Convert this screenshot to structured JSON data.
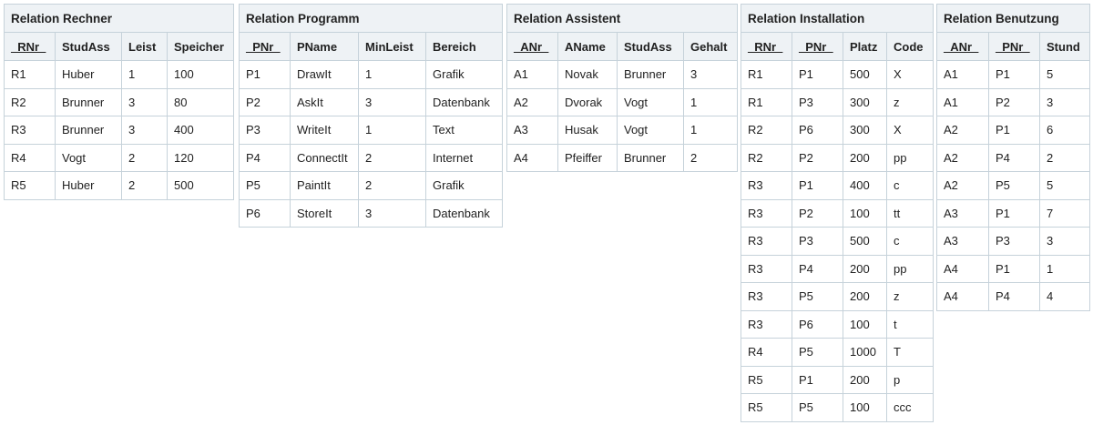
{
  "tables": [
    {
      "title": "Relation Rechner",
      "columns": [
        "_RNr_",
        "StudAss",
        "Leist",
        "Speicher"
      ],
      "rows": [
        [
          "R1",
          "Huber",
          "1",
          "100"
        ],
        [
          "R2",
          "Brunner",
          "3",
          "80"
        ],
        [
          "R3",
          "Brunner",
          "3",
          "400"
        ],
        [
          "R4",
          "Vogt",
          "2",
          "120"
        ],
        [
          "R5",
          "Huber",
          "2",
          "500"
        ]
      ]
    },
    {
      "title": "Relation Programm",
      "columns": [
        "_PNr_",
        "PName",
        "MinLeist",
        "Bereich"
      ],
      "rows": [
        [
          "P1",
          "DrawIt",
          "1",
          "Grafik"
        ],
        [
          "P2",
          "AskIt",
          "3",
          "Datenbank"
        ],
        [
          "P3",
          "WriteIt",
          "1",
          "Text"
        ],
        [
          "P4",
          "ConnectIt",
          "2",
          "Internet"
        ],
        [
          "P5",
          "PaintIt",
          "2",
          "Grafik"
        ],
        [
          "P6",
          "StoreIt",
          "3",
          "Datenbank"
        ]
      ]
    },
    {
      "title": "Relation Assistent",
      "columns": [
        "_ANr_",
        "AName",
        "StudAss",
        "Gehalt"
      ],
      "rows": [
        [
          "A1",
          "Novak",
          "Brunner",
          "3"
        ],
        [
          "A2",
          "Dvorak",
          "Vogt",
          "1"
        ],
        [
          "A3",
          "Husak",
          "Vogt",
          "1"
        ],
        [
          "A4",
          "Pfeiffer",
          "Brunner",
          "2"
        ]
      ]
    },
    {
      "title": "Relation Installation",
      "columns": [
        "_RNr_",
        "_PNr_",
        "Platz",
        "Code"
      ],
      "rows": [
        [
          "R1",
          "P1",
          "500",
          "X"
        ],
        [
          "R1",
          "P3",
          "300",
          "z"
        ],
        [
          "R2",
          "P6",
          "300",
          "X"
        ],
        [
          "R2",
          "P2",
          "200",
          "pp"
        ],
        [
          "R3",
          "P1",
          "400",
          "c"
        ],
        [
          "R3",
          "P2",
          "100",
          "tt"
        ],
        [
          "R3",
          "P3",
          "500",
          "c"
        ],
        [
          "R3",
          "P4",
          "200",
          "pp"
        ],
        [
          "R3",
          "P5",
          "200",
          "z"
        ],
        [
          "R3",
          "P6",
          "100",
          "t"
        ],
        [
          "R4",
          "P5",
          "1000",
          "T"
        ],
        [
          "R5",
          "P1",
          "200",
          "p"
        ],
        [
          "R5",
          "P5",
          "100",
          "ccc"
        ]
      ]
    },
    {
      "title": "Relation Benutzung",
      "columns": [
        "_ANr_",
        "_PNr_",
        "Stund"
      ],
      "rows": [
        [
          "A1",
          "P1",
          "5"
        ],
        [
          "A1",
          "P2",
          "3"
        ],
        [
          "A2",
          "P1",
          "6"
        ],
        [
          "A2",
          "P4",
          "2"
        ],
        [
          "A2",
          "P5",
          "5"
        ],
        [
          "A3",
          "P1",
          "7"
        ],
        [
          "A3",
          "P3",
          "3"
        ],
        [
          "A4",
          "P1",
          "1"
        ],
        [
          "A4",
          "P4",
          "4"
        ]
      ]
    }
  ]
}
